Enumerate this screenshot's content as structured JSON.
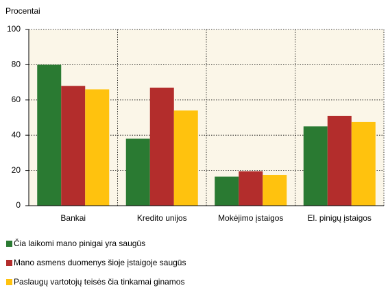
{
  "chart_data": {
    "type": "bar",
    "ylabel": "Procentai",
    "categories": [
      "Bankai",
      "Kredito unijos",
      "Mokėjimo įstaigos",
      "El. pinigų įstaigos"
    ],
    "series": [
      {
        "name": "Čia laikomi mano pinigai yra saugūs",
        "color": "#2a7a32",
        "values": [
          80,
          38,
          16.5,
          45
        ]
      },
      {
        "name": "Mano asmens duomenys šioje įstaigoje saugūs",
        "color": "#b32d2c",
        "values": [
          68,
          67,
          19.5,
          51
        ]
      },
      {
        "name": "Paslaugų vartotojų teisės čia tinkamai ginamos",
        "color": "#ffc20e",
        "values": [
          66,
          54,
          17.5,
          47.5
        ]
      }
    ],
    "ylim": [
      0,
      100
    ],
    "yticks": [
      0,
      20,
      40,
      60,
      80,
      100
    ],
    "grid": true
  }
}
